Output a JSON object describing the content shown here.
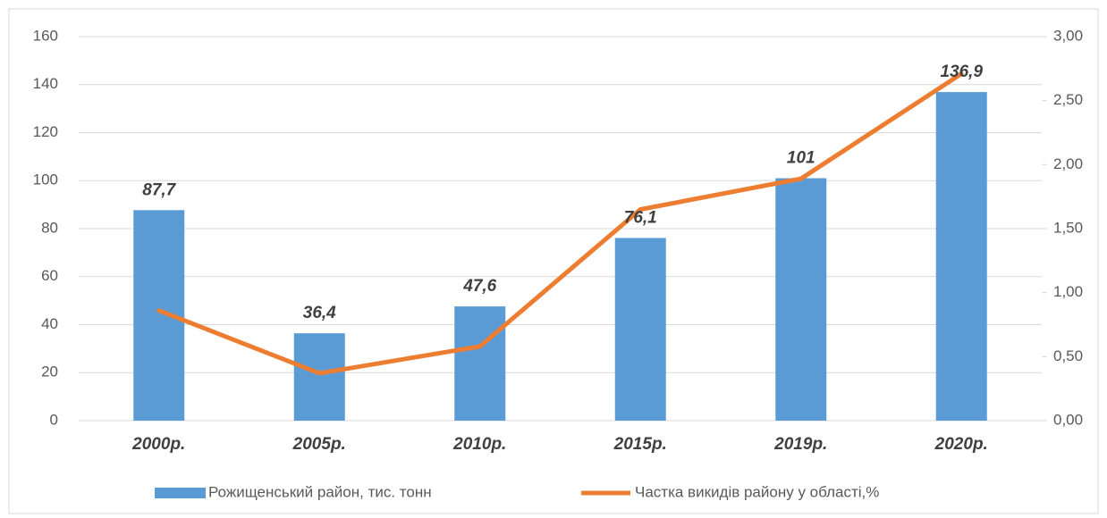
{
  "chart_data": {
    "type": "combo",
    "categories": [
      "2000р.",
      "2005р.",
      "2010р.",
      "2015р.",
      "2019р.",
      "2020р."
    ],
    "series": [
      {
        "name": "Рожищенський район, тис. тонн",
        "type": "bar",
        "color": "#5b9bd5",
        "axis": "y",
        "values": [
          87.7,
          36.4,
          47.6,
          76.1,
          101,
          136.9
        ],
        "value_labels": [
          "87,7",
          "36,4",
          "47,6",
          "76,1",
          "101",
          "136,9"
        ]
      },
      {
        "name": "Частка викидів району у області,%",
        "type": "line",
        "color": "#ed7d31",
        "axis": "y2",
        "values": [
          0.86,
          0.37,
          0.58,
          1.65,
          1.89,
          2.71
        ]
      }
    ],
    "ylim": [
      0,
      160
    ],
    "yticks": [
      0,
      20,
      40,
      60,
      80,
      100,
      120,
      140,
      160
    ],
    "y2lim": [
      0,
      3
    ],
    "y2ticks": [
      {
        "value": 0,
        "label": "0,00"
      },
      {
        "value": 0.5,
        "label": "0,50"
      },
      {
        "value": 1,
        "label": "1,00"
      },
      {
        "value": 1.5,
        "label": "1,50"
      },
      {
        "value": 2,
        "label": "2,00"
      },
      {
        "value": 2.5,
        "label": "2,50"
      },
      {
        "value": 3,
        "label": "3,00"
      }
    ],
    "grid": true,
    "legend": "bottom"
  }
}
